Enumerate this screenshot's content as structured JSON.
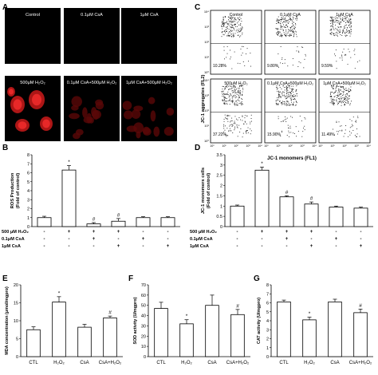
{
  "panels": {
    "A": {
      "label": "A",
      "images": [
        {
          "label": "Control",
          "fluor": "none"
        },
        {
          "label": "0.1μM CsA",
          "fluor": "none"
        },
        {
          "label": "1μM CsA",
          "fluor": "none"
        },
        {
          "label": "500μM H₂O₂",
          "fluor": "bright"
        },
        {
          "label": "0.1μM CsA+500μM H₂O₂",
          "fluor": "dim"
        },
        {
          "label": "1μM CsA+500μM H₂O₂",
          "fluor": "dim"
        }
      ]
    },
    "C": {
      "label": "C",
      "ylabel": "JC-1 aggregates (FL2)",
      "xlabel": "JC-1 monomers (FL1)",
      "ticks_pow": [
        "10⁰",
        "10¹",
        "10²",
        "10³",
        "10⁴"
      ],
      "plots": [
        {
          "label": "Control",
          "percent": "10.28%"
        },
        {
          "label": "0.1μM CsA",
          "percent": "9.80%"
        },
        {
          "label": "1μM CsA",
          "percent": "9.59%"
        },
        {
          "label": "500μM H₂O₂",
          "percent": "37.22%"
        },
        {
          "label": "0.1μM CsA+500μM H₂O₂",
          "percent": "15.90%"
        },
        {
          "label": "1μM CsA+500μM H₂O₂",
          "percent": "11.49%"
        }
      ]
    }
  },
  "chart_data": [
    {
      "id": "B",
      "type": "bar",
      "label": "B",
      "ylabel": "ROS Production\n(Fold of control)",
      "ylim": [
        0,
        8
      ],
      "yticks": [
        "0",
        "1",
        "2",
        "3",
        "4",
        "5",
        "6",
        "7",
        "8"
      ],
      "values": [
        1.0,
        6.3,
        0.3,
        0.6,
        1.0,
        1.0
      ],
      "errors": [
        0.15,
        0.5,
        0.15,
        0.3,
        0.1,
        0.1
      ],
      "marks": [
        "",
        "*",
        "#",
        "#",
        "",
        ""
      ],
      "treatment_rows": [
        {
          "label": "500 μM H₂O₂",
          "signs": [
            "-",
            "+",
            "+",
            "+",
            "-",
            "-"
          ]
        },
        {
          "label": "0.1μM CsA",
          "signs": [
            "-",
            "-",
            "+",
            "-",
            "+",
            "-"
          ]
        },
        {
          "label": "1μM CsA",
          "signs": [
            "-",
            "-",
            "-",
            "+",
            "-",
            "+"
          ]
        }
      ]
    },
    {
      "id": "D",
      "type": "bar",
      "label": "D",
      "ylabel": "JC-1 monomers cells\n(Fold of control)",
      "ylim": [
        0,
        3.5
      ],
      "yticks": [
        "0",
        "0.5",
        "1",
        "1.5",
        "2",
        "2.5",
        "3",
        "3.5"
      ],
      "values": [
        1.0,
        2.75,
        1.45,
        1.1,
        0.95,
        0.9
      ],
      "errors": [
        0.05,
        0.15,
        0.05,
        0.1,
        0.05,
        0.05
      ],
      "marks": [
        "",
        "*",
        "#",
        "#",
        "",
        ""
      ],
      "treatment_rows": [
        {
          "label": "500 μM H₂O₂",
          "signs": [
            "-",
            "+",
            "+",
            "+",
            "-",
            "-"
          ]
        },
        {
          "label": "0.1μM CsA",
          "signs": [
            "-",
            "-",
            "+",
            "-",
            "+",
            "-"
          ]
        },
        {
          "label": "1μM CsA",
          "signs": [
            "-",
            "-",
            "-",
            "+",
            "-",
            "+"
          ]
        }
      ]
    },
    {
      "id": "E",
      "type": "bar",
      "label": "E",
      "ylabel": "MDA concentration (μmol/mgpro)",
      "ylim": [
        0,
        20
      ],
      "yticks": [
        "0",
        "5",
        "10",
        "15",
        "20"
      ],
      "categories": [
        "CTL",
        "H₂O₂",
        "CsA",
        "CsA+H₂O₂"
      ],
      "values": [
        7.5,
        15.2,
        8.2,
        10.8
      ],
      "errors": [
        0.8,
        1.5,
        0.8,
        0.5
      ],
      "marks": [
        "",
        "*",
        "",
        "#"
      ]
    },
    {
      "id": "F",
      "type": "bar",
      "label": "F",
      "ylabel": "SOD activity (U/mgpro)",
      "ylim": [
        0,
        70
      ],
      "yticks": [
        "0",
        "10",
        "20",
        "30",
        "40",
        "50",
        "60",
        "70"
      ],
      "categories": [
        "CTL",
        "H₂O₂",
        "CsA",
        "CsA+H₂O₂"
      ],
      "values": [
        47,
        32,
        50,
        41
      ],
      "errors": [
        6,
        4,
        10,
        5
      ],
      "marks": [
        "",
        "*",
        "",
        "#"
      ]
    },
    {
      "id": "G",
      "type": "bar",
      "label": "G",
      "ylabel": "CAT activity (U/mgpro)",
      "ylim": [
        0,
        8
      ],
      "yticks": [
        "0",
        "1",
        "2",
        "3",
        "4",
        "5",
        "6",
        "7",
        "8"
      ],
      "categories": [
        "CTL",
        "H₂O₂",
        "CsA",
        "CsA+H₂O₂"
      ],
      "values": [
        6.1,
        4.1,
        6.1,
        4.9
      ],
      "errors": [
        0.2,
        0.3,
        0.3,
        0.4
      ],
      "marks": [
        "",
        "*",
        "",
        "#"
      ]
    }
  ]
}
